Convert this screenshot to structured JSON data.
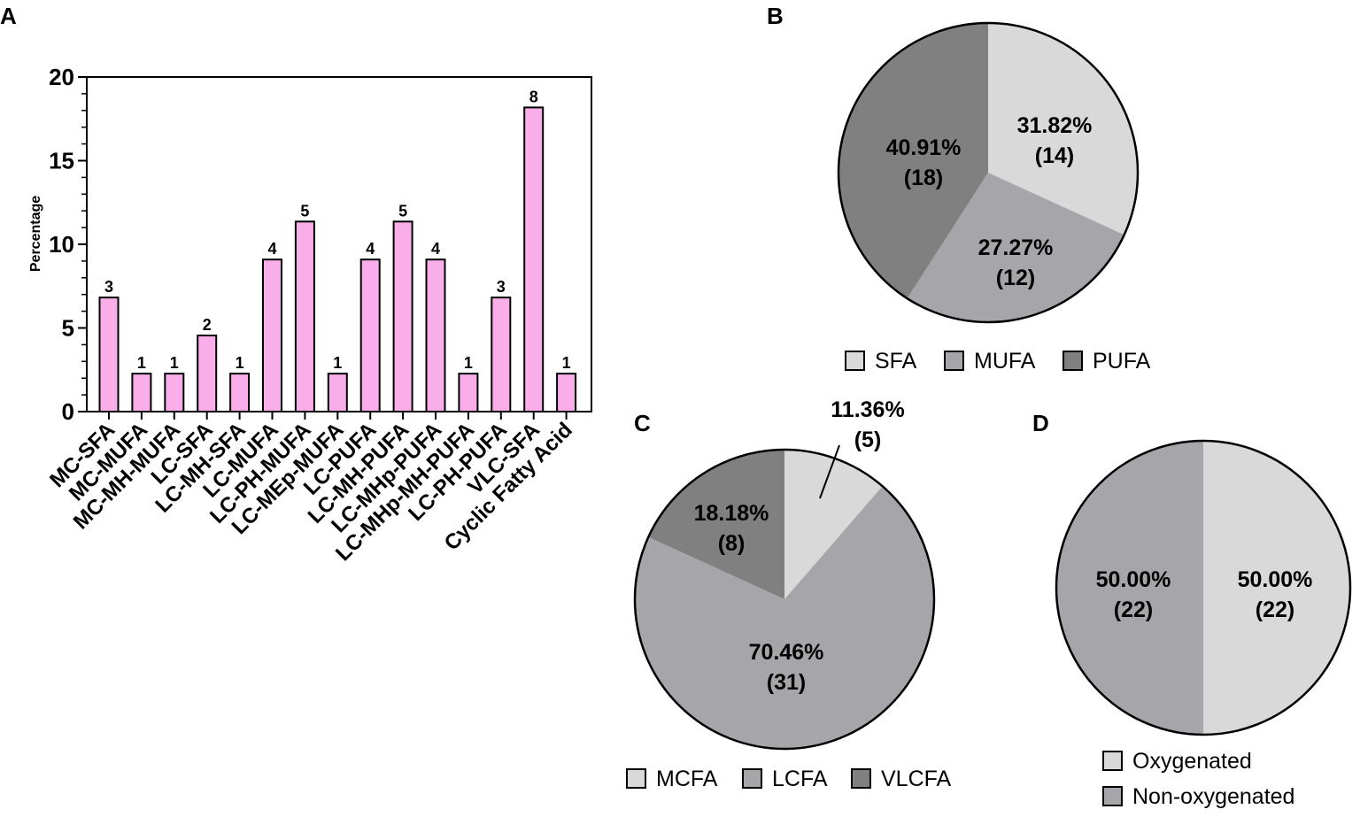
{
  "chart_data": [
    {
      "panel": "A",
      "type": "bar",
      "categories": [
        "MC-SFA",
        "MC-MUFA",
        "MC-MH-MUFA",
        "LC-SFA",
        "LC-MH-SFA",
        "LC-MUFA",
        "LC-PH-MUFA",
        "LC-MEp-MUFA",
        "LC-PUFA",
        "LC-MH-PUFA",
        "LC-MHp-PUFA",
        "LC-MHp-MH-PUFA",
        "LC-PH-PUFA",
        "VLC-SFA",
        "Cyclic Fatty Acid"
      ],
      "values": [
        6.82,
        2.27,
        2.27,
        4.55,
        2.27,
        9.09,
        11.36,
        2.27,
        9.09,
        11.36,
        9.09,
        2.27,
        6.82,
        18.18,
        2.27
      ],
      "data_labels": [
        "3",
        "1",
        "1",
        "2",
        "1",
        "4",
        "5",
        "1",
        "4",
        "5",
        "4",
        "1",
        "3",
        "8",
        "1"
      ],
      "title": "",
      "xlabel": "",
      "ylabel": "Percentage",
      "ylim": [
        0,
        20
      ],
      "yticks": [
        "0",
        "5",
        "10",
        "15",
        "20"
      ],
      "bar_color": "#f9aeea"
    },
    {
      "panel": "B",
      "type": "pie",
      "slices": [
        {
          "name": "SFA",
          "value": 31.82,
          "percent_label": "31.82%",
          "count_label": "(14)",
          "color": "#d9d9d9"
        },
        {
          "name": "MUFA",
          "value": 27.27,
          "percent_label": "27.27%",
          "count_label": "(12)",
          "color": "#a6a6aa"
        },
        {
          "name": "PUFA",
          "value": 40.91,
          "percent_label": "40.91%",
          "count_label": "(18)",
          "color": "#808080"
        }
      ],
      "legend": [
        "SFA",
        "MUFA",
        "PUFA"
      ]
    },
    {
      "panel": "C",
      "type": "pie",
      "slices": [
        {
          "name": "MCFA",
          "value": 11.36,
          "percent_label": "11.36%",
          "count_label": "(5)",
          "color": "#d9d9d9"
        },
        {
          "name": "LCFA",
          "value": 70.46,
          "percent_label": "70.46%",
          "count_label": "(31)",
          "color": "#a6a6aa"
        },
        {
          "name": "VLCFA",
          "value": 18.18,
          "percent_label": "18.18%",
          "count_label": "(8)",
          "color": "#808080"
        }
      ],
      "legend": [
        "MCFA",
        "LCFA",
        "VLCFA"
      ]
    },
    {
      "panel": "D",
      "type": "pie",
      "slices": [
        {
          "name": "Oxygenated",
          "value": 50.0,
          "percent_label": "50.00%",
          "count_label": "(22)",
          "color": "#d9d9d9"
        },
        {
          "name": "Non-oxygenated",
          "value": 50.0,
          "percent_label": "50.00%",
          "count_label": "(22)",
          "color": "#a6a6aa"
        }
      ],
      "legend": [
        "Oxygenated",
        "Non-oxygenated"
      ]
    }
  ]
}
